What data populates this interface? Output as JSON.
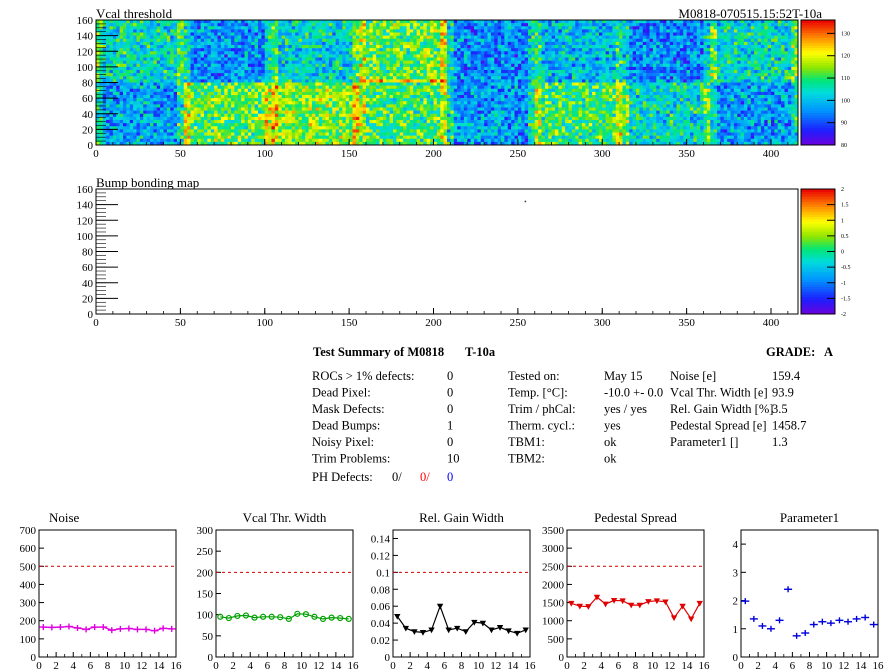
{
  "header": {
    "title_left": "Vcal threshold",
    "title_right": "M0818-070515.15:52T-10a"
  },
  "maps": [
    {
      "title": "Vcal threshold",
      "type": "heatmap",
      "xlim": [
        0,
        416
      ],
      "ylim": [
        0,
        160
      ],
      "xticks": [
        "0",
        "50",
        "100",
        "150",
        "200",
        "250",
        "300",
        "350",
        "400"
      ],
      "yticks": [
        "0",
        "20",
        "40",
        "60",
        "80",
        "100",
        "120",
        "140",
        "160"
      ],
      "colorbar": {
        "min": 80,
        "max": 136,
        "labels": [
          "130",
          "120",
          "110",
          "100",
          "90",
          "80"
        ],
        "label_values": [
          130,
          120,
          110,
          100,
          90,
          80
        ]
      },
      "roc_means": {
        "top": [
          104,
          96,
          103,
          112,
          95,
          100,
          95,
          104
        ],
        "bottom": [
          98,
          112,
          115,
          110,
          97,
          110,
          104,
          97
        ]
      }
    },
    {
      "title": "Bump bonding map",
      "type": "heatmap",
      "xlim": [
        0,
        416
      ],
      "ylim": [
        0,
        160
      ],
      "xticks": [
        "0",
        "50",
        "100",
        "150",
        "200",
        "250",
        "300",
        "350",
        "400"
      ],
      "yticks": [
        "0",
        "20",
        "40",
        "60",
        "80",
        "100",
        "120",
        "140",
        "160"
      ],
      "colorbar": {
        "min": -2,
        "max": 2,
        "labels": [
          "2",
          "1.5",
          "1",
          "0.5",
          "0",
          "-0.5",
          "-1",
          "-1.5",
          "-2"
        ],
        "label_values": [
          2,
          1.5,
          1,
          0.5,
          0,
          -0.5,
          -1,
          -1.5,
          -2
        ]
      },
      "points": [
        {
          "x": 254,
          "y": 145
        }
      ]
    }
  ],
  "summary": {
    "title": "Test Summary of M0818",
    "test": "T-10a",
    "grade_label": "GRADE:",
    "grade": "A",
    "left": [
      {
        "label": "ROCs > 1% defects:",
        "value": "0"
      },
      {
        "label": "Dead Pixel:",
        "value": "0"
      },
      {
        "label": "Mask Defects:",
        "value": "0"
      },
      {
        "label": "Dead Bumps:",
        "value": "1"
      },
      {
        "label": "Noisy Pixel:",
        "value": "0"
      },
      {
        "label": "Trim Problems:",
        "value": "10"
      }
    ],
    "ph_defects": {
      "label": "PH Defects:",
      "v1": "0/",
      "v2": "0/",
      "v3": "0",
      "c2": "#ff0000",
      "c3": "#0000ff"
    },
    "middle": [
      {
        "label": "Tested on:",
        "value": "May 15"
      },
      {
        "label": "Temp. [°C]:",
        "value": "-10.0 +- 0.0"
      },
      {
        "label": "Trim / phCal:",
        "value": "yes / yes"
      },
      {
        "label": "Therm. cycl.:",
        "value": "yes"
      },
      {
        "label": "TBM1:",
        "value": "ok"
      },
      {
        "label": "TBM2:",
        "value": "ok"
      }
    ],
    "right": [
      {
        "label": "Noise [e]",
        "value": "159.4"
      },
      {
        "label": "Vcal Thr. Width [e]",
        "value": "93.9"
      },
      {
        "label": "Rel. Gain Width [%]",
        "value": "3.5"
      },
      {
        "label": "Pedestal Spread [e]",
        "value": "1458.7"
      },
      {
        "label": "Parameter1 []",
        "value": "1.3"
      }
    ]
  },
  "chart_data": [
    {
      "type": "line",
      "title": "Noise",
      "color": "#e000e0",
      "marker": "cross",
      "xlim": [
        0,
        16
      ],
      "ylim": [
        0,
        700
      ],
      "yticks": [
        0,
        100,
        200,
        300,
        400,
        500,
        600,
        700
      ],
      "limit": 500,
      "x": [
        0,
        1,
        2,
        3,
        4,
        5,
        6,
        7,
        8,
        9,
        10,
        11,
        12,
        13,
        14,
        15
      ],
      "values": [
        165,
        163,
        165,
        168,
        160,
        152,
        165,
        165,
        148,
        155,
        157,
        152,
        152,
        145,
        158,
        155
      ]
    },
    {
      "type": "line",
      "title": "Vcal Thr. Width",
      "color": "#00a000",
      "marker": "circle",
      "xlim": [
        0,
        16
      ],
      "ylim": [
        0,
        300
      ],
      "yticks": [
        0,
        50,
        100,
        150,
        200,
        250,
        300
      ],
      "limit": 200,
      "x": [
        0,
        1,
        2,
        3,
        4,
        5,
        6,
        7,
        8,
        9,
        10,
        11,
        12,
        13,
        14,
        15
      ],
      "values": [
        95,
        92,
        97,
        98,
        93,
        95,
        95,
        94,
        90,
        102,
        101,
        95,
        90,
        93,
        92,
        90
      ]
    },
    {
      "type": "line",
      "title": "Rel. Gain Width",
      "color": "#000000",
      "marker": "triangle",
      "xlim": [
        0,
        16
      ],
      "ylim": [
        0,
        0.15
      ],
      "yticks": [
        0,
        0.02,
        0.04,
        0.06,
        0.08,
        0.1,
        0.12,
        0.14
      ],
      "limit": 0.1,
      "x": [
        0,
        1,
        2,
        3,
        4,
        5,
        6,
        7,
        8,
        9,
        10,
        11,
        12,
        13,
        14,
        15
      ],
      "values": [
        0.048,
        0.034,
        0.03,
        0.029,
        0.032,
        0.06,
        0.032,
        0.034,
        0.03,
        0.041,
        0.04,
        0.032,
        0.035,
        0.031,
        0.028,
        0.032
      ]
    },
    {
      "type": "line",
      "title": "Pedestal Spread",
      "color": "#e00000",
      "marker": "triangle",
      "xlim": [
        0,
        16
      ],
      "ylim": [
        0,
        3500
      ],
      "yticks": [
        0,
        500,
        1000,
        1500,
        2000,
        2500,
        3000,
        3500
      ],
      "limit": 2500,
      "x": [
        0,
        1,
        2,
        3,
        4,
        5,
        6,
        7,
        8,
        9,
        10,
        11,
        12,
        13,
        14,
        15
      ],
      "values": [
        1480,
        1400,
        1390,
        1650,
        1460,
        1560,
        1550,
        1430,
        1430,
        1530,
        1550,
        1520,
        1080,
        1400,
        1050,
        1480
      ]
    },
    {
      "type": "scatter",
      "title": "Parameter1",
      "color": "#0000dd",
      "marker": "cross",
      "xlim": [
        0,
        16
      ],
      "ylim": [
        0,
        4.5
      ],
      "yticks": [
        0,
        1,
        2,
        3,
        4
      ],
      "limit": null,
      "x": [
        0,
        1,
        2,
        3,
        4,
        5,
        6,
        7,
        8,
        9,
        10,
        11,
        12,
        13,
        14,
        15
      ],
      "values": [
        1.98,
        1.35,
        1.1,
        1.0,
        1.3,
        2.4,
        0.75,
        0.85,
        1.15,
        1.25,
        1.2,
        1.3,
        1.25,
        1.35,
        1.4,
        1.15
      ]
    }
  ]
}
